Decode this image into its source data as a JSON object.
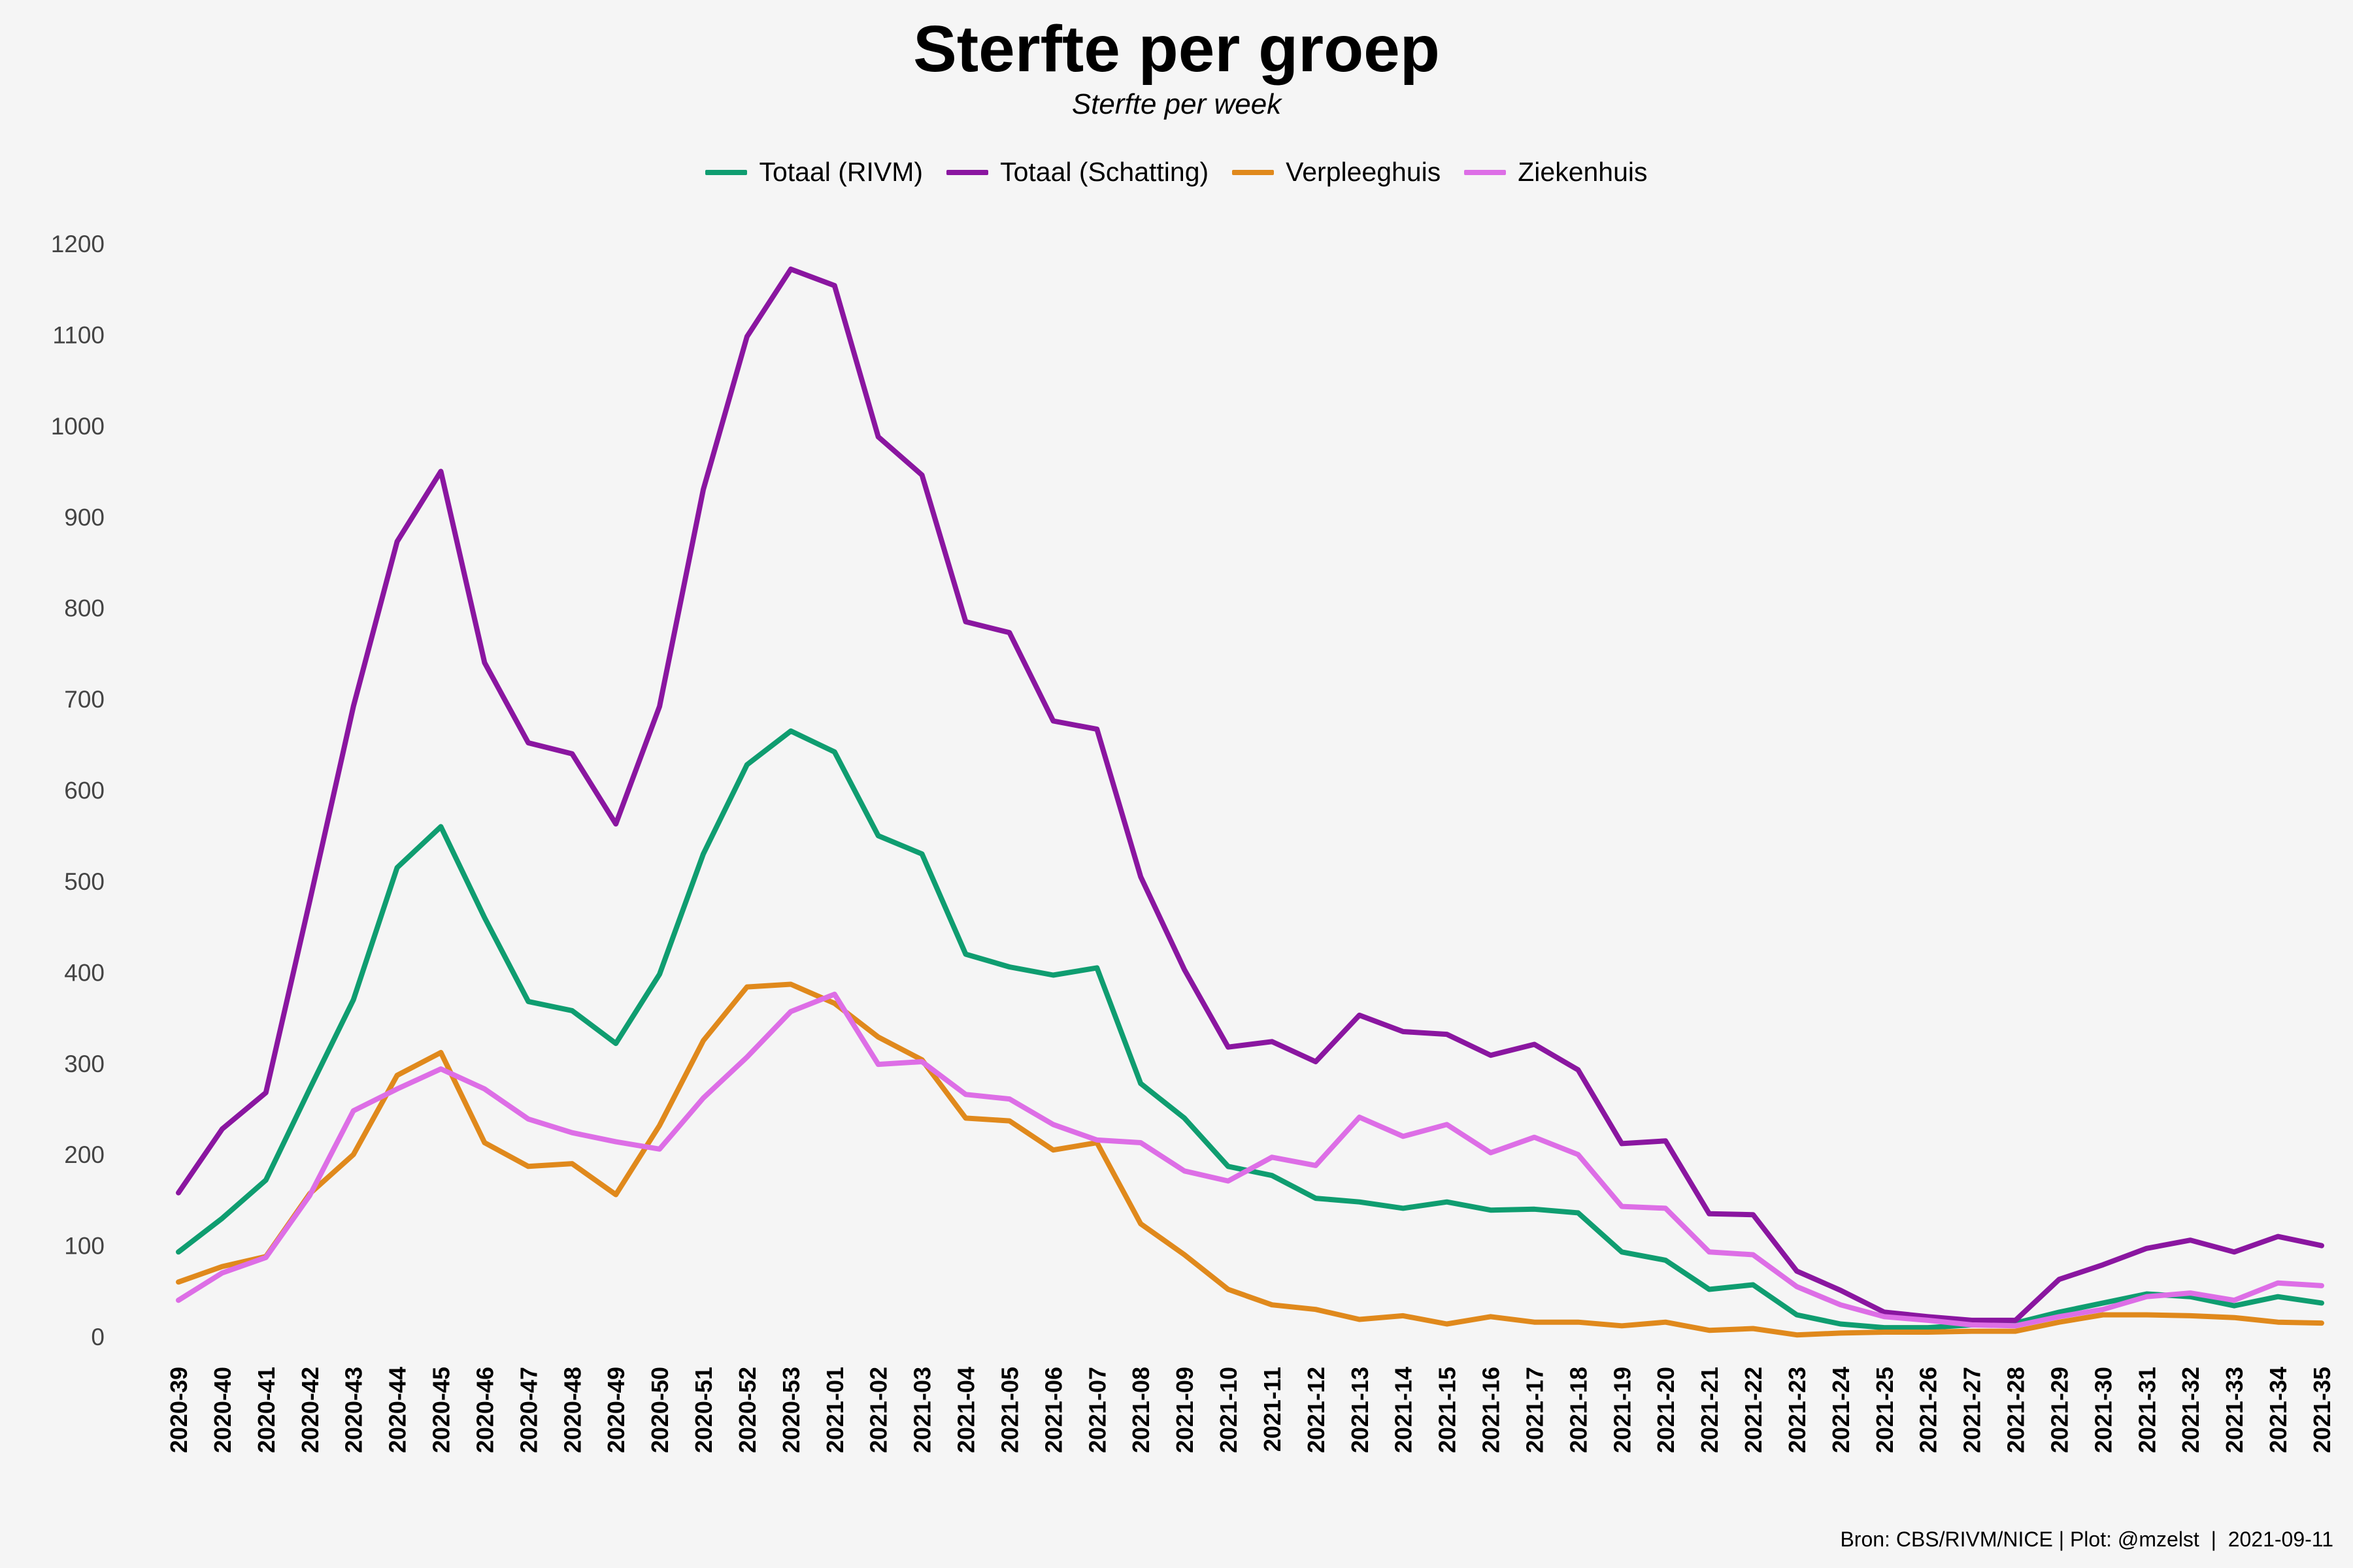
{
  "chart_data": {
    "type": "line",
    "title": "Sterfte per groep",
    "subtitle": "Sterfte per week",
    "xlabel": "",
    "ylabel": "",
    "ylim": [
      0,
      1200
    ],
    "yticks": [
      0,
      100,
      200,
      300,
      400,
      500,
      600,
      700,
      800,
      900,
      1000,
      1100,
      1200
    ],
    "grid": false,
    "legend_position": "top",
    "categories": [
      "2020-39",
      "2020-40",
      "2020-41",
      "2020-42",
      "2020-43",
      "2020-44",
      "2020-45",
      "2020-46",
      "2020-47",
      "2020-48",
      "2020-49",
      "2020-50",
      "2020-51",
      "2020-52",
      "2020-53",
      "2021-01",
      "2021-02",
      "2021-03",
      "2021-04",
      "2021-05",
      "2021-06",
      "2021-07",
      "2021-08",
      "2021-09",
      "2021-10",
      "2021-11",
      "2021-12",
      "2021-13",
      "2021-14",
      "2021-15",
      "2021-16",
      "2021-17",
      "2021-18",
      "2021-19",
      "2021-20",
      "2021-21",
      "2021-22",
      "2021-23",
      "2021-24",
      "2021-25",
      "2021-26",
      "2021-27",
      "2021-28",
      "2021-29",
      "2021-30",
      "2021-31",
      "2021-32",
      "2021-33",
      "2021-34",
      "2021-35"
    ],
    "series": [
      {
        "name": "Totaal (RIVM)",
        "color": "#0f9d70",
        "values": [
          93,
          130,
          172,
          272,
          370,
          515,
          560,
          460,
          368,
          358,
          322,
          398,
          530,
          628,
          665,
          642,
          550,
          530,
          420,
          406,
          397,
          405,
          278,
          240,
          187,
          177,
          152,
          148,
          141,
          148,
          139,
          140,
          136,
          93,
          84,
          52,
          57,
          24,
          14,
          10,
          10,
          13,
          15,
          27,
          37,
          47,
          44,
          34,
          44,
          37
        ]
      },
      {
        "name": "Totaal (Schatting)",
        "color": "#8a16a0",
        "values": [
          158,
          228,
          268,
          478,
          692,
          873,
          950,
          740,
          652,
          640,
          563,
          692,
          930,
          1098,
          1172,
          1154,
          988,
          946,
          785,
          773,
          676,
          667,
          505,
          403,
          318,
          324,
          302,
          353,
          335,
          332,
          309,
          321,
          293,
          212,
          215,
          135,
          134,
          72,
          51,
          27,
          22,
          18,
          18,
          63,
          79,
          97,
          106,
          93,
          110,
          100
        ]
      },
      {
        "name": "Verpleeghuis",
        "color": "#e0891c",
        "values": [
          60,
          77,
          88,
          157,
          200,
          287,
          312,
          213,
          187,
          190,
          156,
          232,
          325,
          384,
          387,
          366,
          329,
          304,
          240,
          237,
          205,
          213,
          124,
          90,
          52,
          35,
          30,
          19,
          23,
          14,
          22,
          16,
          16,
          12,
          16,
          7,
          9,
          2,
          4,
          5,
          5,
          6,
          6,
          16,
          24,
          24,
          23,
          21,
          16,
          15
        ]
      },
      {
        "name": "Ziekenhuis",
        "color": "#dd6ee6",
        "values": [
          40,
          70,
          87,
          155,
          248,
          272,
          294,
          272,
          239,
          224,
          214,
          206,
          262,
          307,
          357,
          376,
          299,
          302,
          266,
          261,
          233,
          216,
          213,
          182,
          171,
          197,
          188,
          241,
          220,
          233,
          202,
          219,
          200,
          143,
          141,
          93,
          90,
          55,
          35,
          22,
          18,
          13,
          12,
          22,
          30,
          44,
          48,
          40,
          59,
          56
        ]
      }
    ]
  },
  "footer": {
    "source": "Bron: CBS/RIVM/NICE | Plot: @mzelst  |  2021-09-11"
  }
}
